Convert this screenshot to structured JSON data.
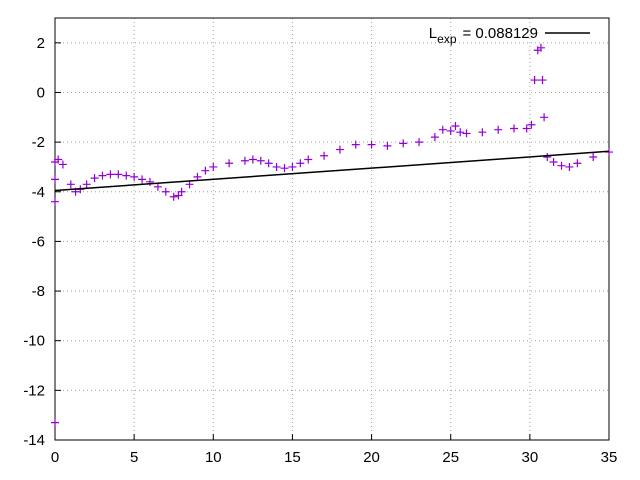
{
  "chart_data": {
    "type": "scatter-line",
    "xlim": [
      0,
      35
    ],
    "xticks": [
      0,
      5,
      10,
      15,
      20,
      25,
      30,
      35
    ],
    "ylim": [
      -14,
      3
    ],
    "yticks": [
      -14,
      -12,
      -10,
      -8,
      -6,
      -4,
      -2,
      0,
      2
    ],
    "grid": true,
    "series": [
      {
        "color": "#9400d3",
        "marker": "plus",
        "x": [
          0,
          0,
          0,
          0,
          0.2,
          0.5,
          1,
          1.3,
          1.6,
          2,
          2.5,
          3,
          3.5,
          4,
          4.5,
          5,
          5.5,
          6,
          6.5,
          7,
          7.5,
          7.8,
          8,
          8.5,
          9,
          9.5,
          10,
          11,
          12,
          12.5,
          13,
          13.5,
          14,
          14.5,
          15,
          15.5,
          16,
          17,
          18,
          19,
          20,
          21,
          22,
          23,
          24,
          24.5,
          25,
          25.3,
          25.6,
          26,
          27,
          28,
          29,
          29.8,
          30.1,
          30.3,
          30.5,
          30.7,
          30.8,
          30.9,
          31.1,
          31.5,
          32,
          32.5,
          33,
          34,
          35
        ],
        "values": [
          -13.3,
          -4.4,
          -3.5,
          -2.8,
          -2.7,
          -2.9,
          -3.7,
          -4.0,
          -3.9,
          -3.7,
          -3.45,
          -3.35,
          -3.3,
          -3.3,
          -3.35,
          -3.4,
          -3.5,
          -3.6,
          -3.8,
          -4.0,
          -4.2,
          -4.15,
          -4.0,
          -3.7,
          -3.4,
          -3.15,
          -3.0,
          -2.85,
          -2.75,
          -2.7,
          -2.75,
          -2.85,
          -3.0,
          -3.05,
          -3.0,
          -2.85,
          -2.7,
          -2.55,
          -2.3,
          -2.1,
          -2.1,
          -2.15,
          -2.05,
          -2.0,
          -1.8,
          -1.5,
          -1.55,
          -1.35,
          -1.6,
          -1.65,
          -1.6,
          -1.5,
          -1.45,
          -1.45,
          -1.3,
          0.5,
          1.7,
          1.8,
          0.5,
          -1.0,
          -2.6,
          -2.8,
          -2.95,
          -3.0,
          -2.85,
          -2.6,
          -2.4
        ]
      },
      {
        "name": "L",
        "name_sub": "exp",
        "name_rest": "= 0.088129",
        "color": "#000000",
        "marker": "line",
        "x": [
          0,
          35
        ],
        "values": [
          -3.95,
          -2.37
        ]
      }
    ]
  }
}
